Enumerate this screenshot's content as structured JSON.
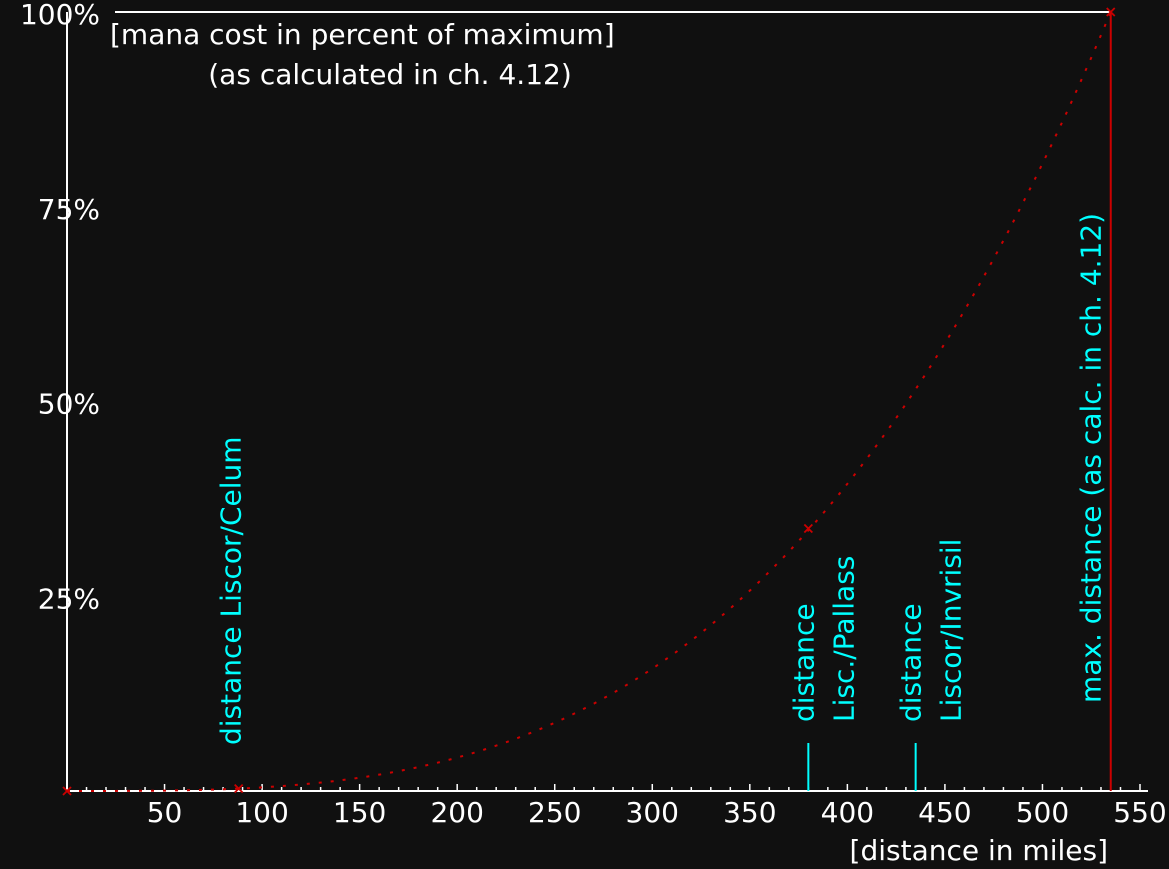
{
  "chart_data": {
    "type": "line",
    "title": [
      "[mana cost in percent of maximum]",
      "(as calculated in ch. 4.12)"
    ],
    "xlabel": "[distance in miles]",
    "ylabel": "[mana cost in percent of maximum]",
    "xlim": [
      0,
      550
    ],
    "ylim": [
      0,
      100
    ],
    "x_ticks": [
      50,
      100,
      150,
      200,
      250,
      300,
      350,
      400,
      450,
      500,
      550
    ],
    "x_minor_step": 10,
    "y_ticks": [
      25,
      50,
      75,
      100
    ],
    "y_tick_labels": [
      "25%",
      "50%",
      "75%",
      "100%"
    ],
    "curve": {
      "name": "mana cost",
      "style": "dotted",
      "color": "#cc0000",
      "model": "power",
      "exponent": 3.2,
      "x_max": 535
    },
    "points": [
      {
        "x": 0,
        "y": 0
      },
      {
        "x": 88,
        "y": 0.3
      },
      {
        "x": 380,
        "y": 33.7
      },
      {
        "x": 535,
        "y": 100
      }
    ],
    "markers": [
      {
        "x": 88,
        "lines": [
          "distance Liscor/Celum"
        ],
        "tick": false
      },
      {
        "x": 380,
        "lines": [
          "distance",
          "Lisc./Pallass"
        ],
        "tick": true
      },
      {
        "x": 435,
        "lines": [
          "distance",
          "Liscor/Invrisil"
        ],
        "tick": true
      },
      {
        "x": 535,
        "lines": [
          "max. distance (as calc. in ch. 4.12)"
        ],
        "tick": false,
        "full_line": true
      }
    ],
    "colors": {
      "background": "#101010",
      "axis": "#ffffff",
      "curve": "#cc0000",
      "annotation": "#00ffff"
    }
  }
}
